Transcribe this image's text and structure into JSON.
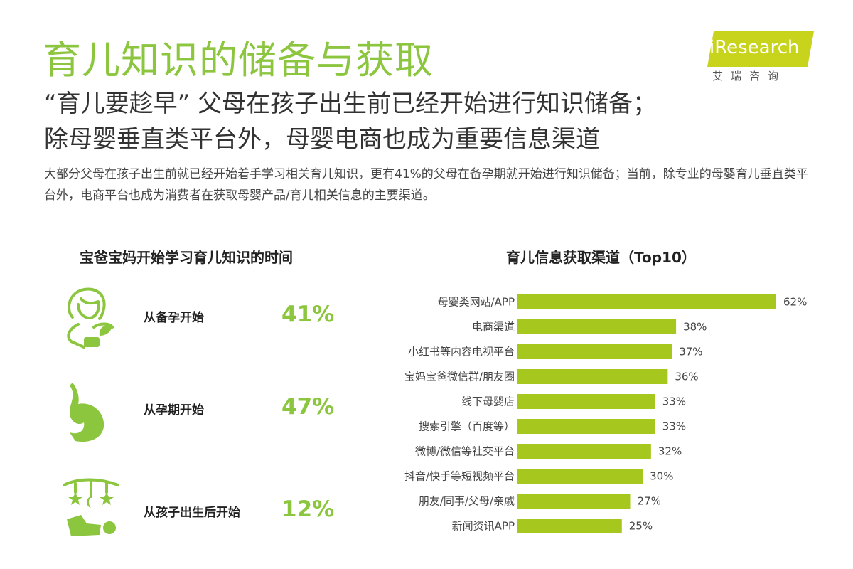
{
  "header": {
    "title": "育儿知识的储备与获取",
    "subtitle_line1": "“育儿要趁早” 父母在孩子出生前已经开始进行知识储备；",
    "subtitle_line2": "除母婴垂直类平台外，母婴电商也成为重要信息渠道",
    "description": "大部分父母在孩子出生前就已经开始着手学习相关育儿知识，更有41%的父母在备孕期就开始进行知识储备；当前，除专业的母婴育儿垂直类平台外，电商平台也成为消费者在获取母婴产品/育儿相关信息的主要渠道。"
  },
  "logo": {
    "text": "iResearch",
    "chinese": "艾瑞咨询",
    "color": "#c8d41c"
  },
  "left_panel": {
    "title": "宝爸宝妈开始学习育儿知识的时间",
    "items": [
      {
        "label": "从备孕开始",
        "value": "41%",
        "icon": "mother-with-plant-icon"
      },
      {
        "label": "从孕期开始",
        "value": "47%",
        "icon": "pregnant-belly-icon"
      },
      {
        "label": "从孩子出生后开始",
        "value": "12%",
        "icon": "baby-mobile-icon"
      }
    ]
  },
  "colors": {
    "accent": "#8cc63f",
    "bar": "#a6c81e"
  },
  "chart_data": {
    "type": "bar",
    "orientation": "horizontal",
    "title": "育儿信息获取渠道（Top10）",
    "categories": [
      "母婴类网站/APP",
      "电商渠道",
      "小红书等内容电视平台",
      "宝妈宝爸微信群/朋友圈",
      "线下母婴店",
      "搜索引擎（百度等）",
      "微博/微信等社交平台",
      "抖音/快手等短视频平台",
      "朋友/同事/父母/亲戚",
      "新闻资讯APP"
    ],
    "values": [
      62,
      38,
      37,
      36,
      33,
      33,
      32,
      30,
      27,
      25
    ],
    "value_labels": [
      "62%",
      "38%",
      "37%",
      "36%",
      "33%",
      "33%",
      "32%",
      "30%",
      "27%",
      "25%"
    ],
    "unit": "%",
    "xlim": [
      0,
      62
    ],
    "grid": false,
    "legend": "none"
  }
}
